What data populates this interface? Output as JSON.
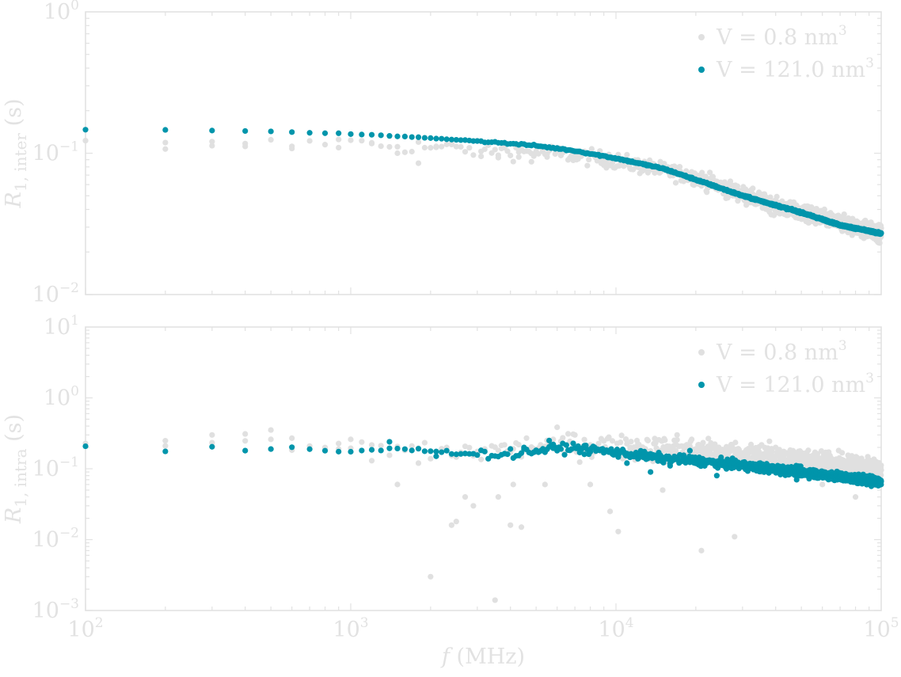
{
  "colors": {
    "axis": "#e2e2e2",
    "text": "#e2e2e2",
    "series_small": "#e0e0e0",
    "series_large": "#0095ab"
  },
  "chart_data": [
    {
      "type": "scatter",
      "id": "top",
      "ylabel_main": "R",
      "ylabel_sub": "1, inter",
      "ylabel_unit": " (s)",
      "xscale": "log",
      "yscale": "log",
      "xlim": [
        100,
        100000
      ],
      "ylim": [
        0.01,
        1
      ],
      "yticks": [
        {
          "v": 1,
          "base": "10",
          "exp": "0"
        },
        {
          "v": 0.1,
          "base": "10",
          "exp": "−1"
        },
        {
          "v": 0.01,
          "base": "10",
          "exp": "−2"
        }
      ],
      "xticklabels_shown": false,
      "grid": false,
      "legend_position": "top-right",
      "series": [
        {
          "name": "V = 0.8 nm",
          "name_sup": "3",
          "color": "#e0e0e0",
          "trend": [
            [
              100,
              0.115
            ],
            [
              300,
              0.113
            ],
            [
              1000,
              0.118
            ],
            [
              3000,
              0.106
            ],
            [
              6000,
              0.1
            ],
            [
              10000,
              0.088
            ],
            [
              20000,
              0.068
            ],
            [
              40000,
              0.042
            ],
            [
              100000,
              0.027
            ]
          ],
          "x": [
            200,
            300,
            400,
            600,
            900,
            1200,
            1500,
            1800,
            2100,
            2400,
            3100,
            3600,
            4300,
            4800,
            5500,
            6200,
            7100,
            8600,
            9400,
            12000,
            14000,
            16000,
            19000,
            22000,
            26000,
            31000,
            38000,
            45000,
            55000,
            70000,
            90000
          ],
          "y": [
            0.107,
            0.113,
            0.117,
            0.108,
            0.125,
            0.117,
            0.1,
            0.085,
            0.11,
            0.117,
            0.095,
            0.093,
            0.094,
            0.087,
            0.094,
            0.097,
            0.09,
            0.096,
            0.098,
            0.088,
            0.079,
            0.07,
            0.065,
            0.053,
            0.048,
            0.043,
            0.047,
            0.038,
            0.033,
            0.03,
            0.026
          ]
        },
        {
          "name": "V = 121.0 nm",
          "name_sup": "3",
          "color": "#0095ab",
          "trend": [
            [
              100,
              0.146
            ],
            [
              200,
              0.146
            ],
            [
              300,
              0.145
            ],
            [
              400,
              0.144
            ],
            [
              500,
              0.143
            ],
            [
              600,
              0.141
            ],
            [
              700,
              0.14
            ],
            [
              800,
              0.139
            ],
            [
              1000,
              0.137
            ],
            [
              2000,
              0.128
            ],
            [
              3000,
              0.122
            ],
            [
              5000,
              0.113
            ],
            [
              7000,
              0.104
            ],
            [
              10000,
              0.092
            ],
            [
              15000,
              0.078
            ],
            [
              20000,
              0.065
            ],
            [
              30000,
              0.05
            ],
            [
              50000,
              0.038
            ],
            [
              70000,
              0.031
            ],
            [
              100000,
              0.027
            ]
          ],
          "x": [],
          "y": []
        }
      ]
    },
    {
      "type": "scatter",
      "id": "bottom",
      "ylabel_main": "R",
      "ylabel_sub": "1, intra",
      "ylabel_unit": " (s)",
      "xlabel_var": "f",
      "xlabel_unit": " (MHz)",
      "xscale": "log",
      "yscale": "log",
      "xlim": [
        100,
        100000
      ],
      "ylim": [
        0.001,
        10
      ],
      "yticks": [
        {
          "v": 10,
          "base": "10",
          "exp": "1"
        },
        {
          "v": 1,
          "base": "10",
          "exp": "0"
        },
        {
          "v": 0.1,
          "base": "10",
          "exp": "−1"
        },
        {
          "v": 0.01,
          "base": "10",
          "exp": "−2"
        },
        {
          "v": 0.001,
          "base": "10",
          "exp": "−3"
        }
      ],
      "xticks": [
        {
          "v": 100,
          "base": "10",
          "exp": "2"
        },
        {
          "v": 1000,
          "base": "10",
          "exp": "3"
        },
        {
          "v": 10000,
          "base": "10",
          "exp": "4"
        },
        {
          "v": 100000,
          "base": "10",
          "exp": "5"
        }
      ],
      "grid": false,
      "legend_position": "top-right",
      "series": [
        {
          "name": "V = 0.8 nm",
          "name_sup": "3",
          "color": "#e0e0e0",
          "trend": [
            [
              100,
              0.21
            ],
            [
              300,
              0.25
            ],
            [
              1000,
              0.2
            ],
            [
              3000,
              0.17
            ],
            [
              6000,
              0.22
            ],
            [
              10000,
              0.2
            ],
            [
              20000,
              0.18
            ],
            [
              40000,
              0.14
            ],
            [
              100000,
              0.09
            ]
          ],
          "x": [
            200,
            300,
            400,
            500,
            600,
            900,
            1000,
            1200,
            1500,
            1800,
            2000,
            2400,
            2500,
            2700,
            2900,
            3500,
            3600,
            4000,
            4100,
            4400,
            5400,
            6000,
            7000,
            8000,
            9500,
            10200,
            12000,
            15000,
            17000,
            21000,
            28000,
            40000,
            60000,
            80000
          ],
          "y": [
            0.21,
            0.3,
            0.31,
            0.26,
            0.27,
            0.19,
            0.26,
            0.13,
            0.06,
            0.12,
            0.003,
            0.016,
            0.018,
            0.04,
            0.03,
            0.0014,
            0.04,
            0.016,
            0.06,
            0.015,
            0.06,
            0.2,
            0.3,
            0.06,
            0.025,
            0.013,
            0.25,
            0.05,
            0.3,
            0.007,
            0.011,
            0.2,
            0.06,
            0.04
          ]
        },
        {
          "name": "V = 121.0 nm",
          "name_sup": "3",
          "color": "#0095ab",
          "trend": [
            [
              100,
              0.2
            ],
            [
              200,
              0.17
            ],
            [
              300,
              0.2
            ],
            [
              400,
              0.18
            ],
            [
              500,
              0.19
            ],
            [
              600,
              0.2
            ],
            [
              700,
              0.19
            ],
            [
              800,
              0.18
            ],
            [
              1000,
              0.175
            ],
            [
              1500,
              0.19
            ],
            [
              2000,
              0.18
            ],
            [
              3000,
              0.16
            ],
            [
              4000,
              0.16
            ],
            [
              5000,
              0.18
            ],
            [
              7000,
              0.2
            ],
            [
              10000,
              0.17
            ],
            [
              15000,
              0.14
            ],
            [
              20000,
              0.13
            ],
            [
              30000,
              0.11
            ],
            [
              50000,
              0.09
            ],
            [
              100000,
              0.065
            ]
          ],
          "x": [
            1400,
            2100,
            4500,
            5600,
            5800,
            7600,
            11000,
            13500,
            16000,
            19000,
            24000,
            35000,
            48000,
            65000
          ],
          "y": [
            0.24,
            0.15,
            0.2,
            0.25,
            0.22,
            0.16,
            0.12,
            0.09,
            0.11,
            0.18,
            0.08,
            0.12,
            0.07,
            0.09
          ]
        }
      ]
    }
  ]
}
